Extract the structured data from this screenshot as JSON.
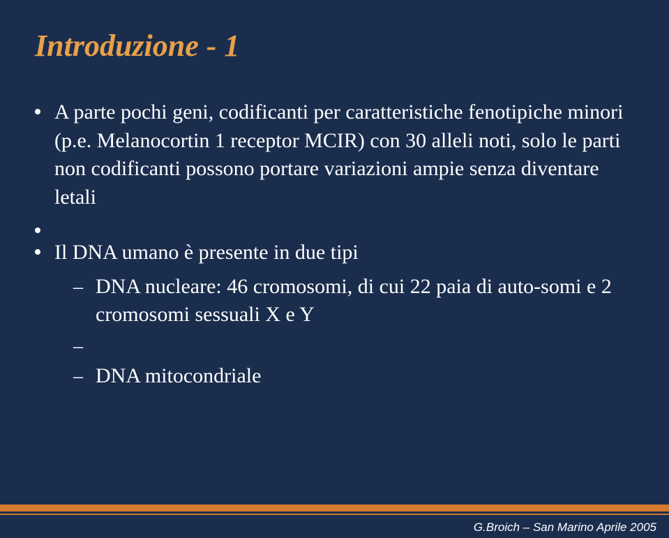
{
  "slide": {
    "title": "Introduzione - 1",
    "bullets": [
      {
        "level": 1,
        "text": "A parte pochi geni, codificanti per caratteristiche fenotipiche minori (p.e. Melanocortin 1 receptor MCIR) con 30 alleli noti, solo le parti non codificanti possono portare variazioni ampie senza diventare letali"
      },
      {
        "level": 1,
        "text": ""
      },
      {
        "level": 1,
        "text": "Il DNA umano è presente in due tipi"
      },
      {
        "level": 2,
        "text": "DNA nucleare: 46 cromosomi, di cui 22 paia di auto-somi e 2 cromosomi sessuali X e Y"
      },
      {
        "level": 2,
        "text": ""
      },
      {
        "level": 2,
        "text": "DNA mitocondriale"
      }
    ],
    "footer": "G.Broich – San Marino Aprile 2005"
  },
  "style": {
    "background_color": "#1a2d4d",
    "title_color": "#e8a04a",
    "text_color": "#ffffff",
    "accent_color": "#d67a2e",
    "title_fontsize": 44,
    "body_fontsize": 30,
    "footer_fontsize": 17
  }
}
